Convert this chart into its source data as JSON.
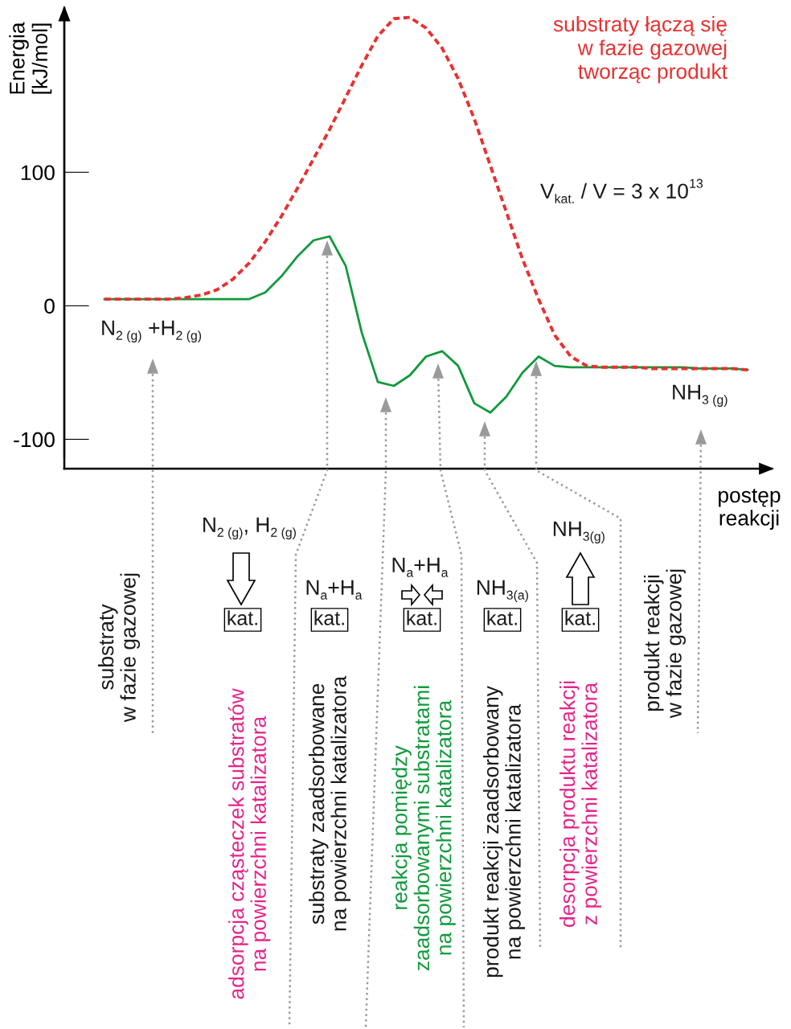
{
  "chart_data": {
    "type": "line",
    "ylabel": "Energia\n[kJ/mol]",
    "xlabel": "postęp\nreakcji",
    "categories": [
      null,
      null,
      null,
      null,
      null,
      null,
      null,
      null,
      null,
      null,
      null,
      null,
      null,
      null,
      null,
      null,
      null,
      null,
      null,
      null,
      null,
      null,
      null,
      null,
      null,
      null,
      null,
      null,
      null,
      null,
      null,
      null,
      null,
      null,
      null,
      null,
      null,
      null,
      null,
      null,
      null
    ],
    "series": [
      {
        "color": "#119a3c",
        "line_style": "solid",
        "values": [
          5,
          5,
          5,
          5,
          5,
          5,
          5,
          5,
          5,
          5,
          10,
          22,
          37,
          49,
          52,
          30,
          -20,
          -57,
          -60,
          -52,
          -38,
          -34,
          -45,
          -73,
          -80,
          -68,
          -50,
          -38,
          -45,
          -46,
          -46,
          -46,
          -46,
          -46,
          -46,
          -46,
          -46,
          -47,
          -47,
          -47,
          -48
        ]
      },
      {
        "name": "substraty łączą się\nw fazie gazowej\ntworząc produkt",
        "color": "#e8312f",
        "line_style": "dashed",
        "values": [
          5,
          5,
          5,
          5,
          5,
          6,
          8,
          12,
          20,
          32,
          48,
          67,
          88,
          110,
          132,
          156,
          180,
          202,
          215,
          216,
          208,
          193,
          170,
          140,
          105,
          70,
          35,
          5,
          -22,
          -38,
          -45,
          -46,
          -46,
          -46,
          -47,
          -47,
          -47,
          -47,
          -47,
          -47,
          -48
        ]
      }
    ],
    "ylim": [
      -122,
      223
    ],
    "yticks": [
      100,
      0,
      -100
    ],
    "grid": false,
    "tick_labels": "y",
    "marker": "none",
    "annotations": [
      "V$_{kat.}$ / V = 3 x 10$^{13}$",
      "N$_{2 (g)}$ +H$_{2 (g)}$",
      "NH$_{3 (g)}$",
      "substraty\nw fazie gazowej",
      "adsorpcja cząsteczek substratów\nna powierzchni katalizatora",
      "substraty zaadsorbowane\nna powierzchni katalizatora",
      "reakcja pomiędzy\nzaadsorbowanymi substratami\nna powierzchni katalizatora",
      "produkt reakcji zaadsorbowany\nna powierzchni katalizatora",
      "desorpcja produktu reakcji\nz powierzchni katalizatora",
      "produkt reakcji\nw fazie gazowej",
      "N$_{2 (g)}$, H$_{2 (g)}$",
      "kat.",
      "N$_{a}$+H$_{a}$",
      "kat.",
      "N$_{a}$+H$_{a}$",
      "kat.",
      "NH$_{3(a)}$",
      "kat.",
      "NH$_{3(g)}$",
      "kat."
    ]
  }
}
